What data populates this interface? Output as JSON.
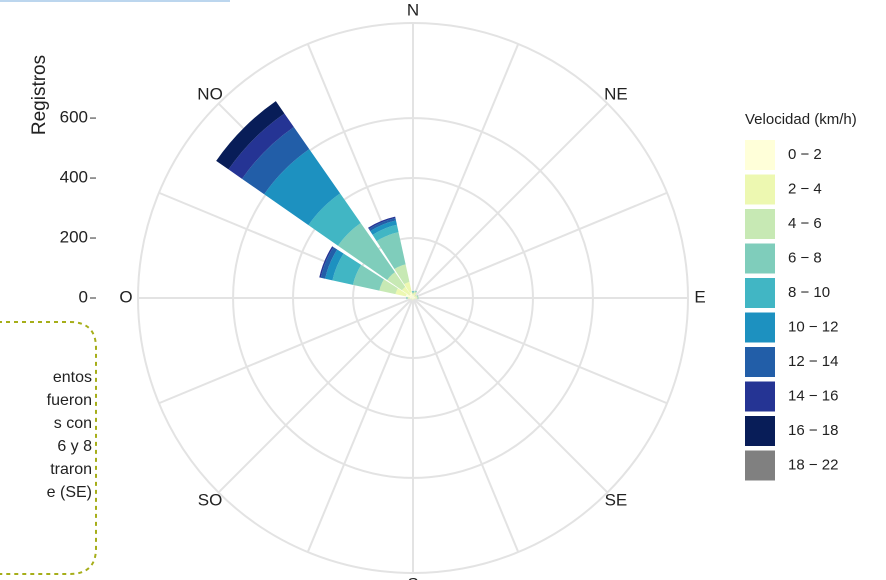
{
  "chart_data": {
    "type": "windrose",
    "ylabel": "Registros",
    "categories": [
      "N",
      null,
      "NE",
      null,
      "E",
      null,
      "SE",
      null,
      "S",
      null,
      "SO",
      null,
      "O",
      null,
      "NO",
      null
    ],
    "ylim": [
      0,
      917
    ],
    "yticks": [
      0,
      200,
      400,
      600
    ],
    "grid": true,
    "legend_title": "Velocidad (km/h)",
    "series": [
      {
        "name": "0 − 2",
        "color": "#ffffd9",
        "values": [
          8,
          10,
          6,
          8,
          8,
          5,
          4,
          3,
          4,
          5,
          4,
          5,
          10,
          25,
          15,
          20
        ]
      },
      {
        "name": "2 − 4",
        "color": "#edf8b1",
        "values": [
          6,
          8,
          4,
          5,
          5,
          3,
          2,
          0,
          2,
          3,
          2,
          3,
          6,
          35,
          30,
          35
        ]
      },
      {
        "name": "4 − 6",
        "color": "#c7e9b4",
        "values": [
          4,
          5,
          2,
          3,
          3,
          0,
          0,
          0,
          0,
          0,
          0,
          0,
          3,
          55,
          60,
          60
        ]
      },
      {
        "name": "6 − 8",
        "color": "#7fcdbb",
        "values": [
          3,
          2,
          0,
          2,
          2,
          0,
          0,
          0,
          0,
          0,
          0,
          0,
          2,
          90,
          200,
          110
        ]
      },
      {
        "name": "8 − 10",
        "color": "#41b6c4",
        "values": [
          2,
          0,
          0,
          0,
          0,
          0,
          0,
          0,
          0,
          0,
          0,
          0,
          1,
          70,
          120,
          25
        ]
      },
      {
        "name": "10 − 12",
        "color": "#1d91c0",
        "values": [
          0,
          0,
          0,
          0,
          0,
          0,
          0,
          0,
          0,
          0,
          0,
          0,
          0,
          25,
          180,
          15
        ]
      },
      {
        "name": "12 − 14",
        "color": "#225ea8",
        "values": [
          0,
          0,
          0,
          0,
          0,
          0,
          0,
          0,
          0,
          0,
          0,
          0,
          0,
          15,
          90,
          8
        ]
      },
      {
        "name": "14 − 16",
        "color": "#253494",
        "values": [
          0,
          0,
          0,
          0,
          0,
          0,
          0,
          0,
          0,
          0,
          0,
          0,
          0,
          5,
          55,
          5
        ]
      },
      {
        "name": "16 − 18",
        "color": "#081d58",
        "values": [
          0,
          0,
          0,
          0,
          0,
          0,
          0,
          0,
          0,
          0,
          0,
          0,
          0,
          0,
          50,
          0
        ]
      },
      {
        "name": "18 − 22",
        "color": "#808080",
        "values": [
          0,
          0,
          0,
          0,
          0,
          0,
          0,
          0,
          0,
          0,
          0,
          0,
          0,
          0,
          0,
          0
        ]
      }
    ]
  },
  "annotation": {
    "lines": [
      "entos",
      "fueron",
      "s con",
      "6 y 8",
      "traron",
      "e (SE)"
    ]
  }
}
